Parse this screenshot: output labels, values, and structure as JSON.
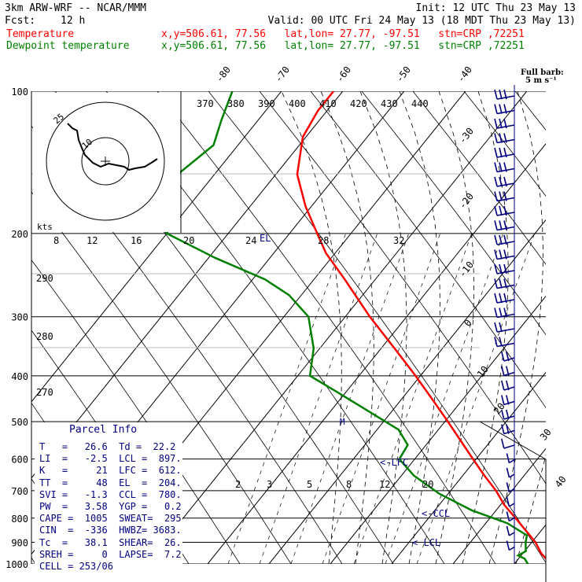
{
  "header": {
    "model": "3km ARW-WRF -- NCAR/MMM",
    "init": "Init: 12 UTC Thu 23 May 13",
    "fcst_label": "Fcst:",
    "fcst_value": "12 h",
    "valid": "Valid: 00 UTC Fri 24 May 13 (18 MDT Thu 23 May 13)"
  },
  "legend": [
    {
      "name": "Temperature",
      "info": "x,y=506.61, 77.56   lat,lon= 27.77, -97.51   stn=CRP ,72251",
      "color": "#ff0000"
    },
    {
      "name": "Dewpoint temperature",
      "info": "x,y=506.61, 77.56   lat,lon= 27.77, -97.51   stn=CRP ,72251",
      "color": "#008000"
    }
  ],
  "chart_data": {
    "type": "skew-t log-p sounding",
    "pressure_levels": [
      "100",
      "200",
      "300",
      "400",
      "500",
      "600",
      "700",
      "800",
      "900",
      "1000"
    ],
    "isotherm_labels": [
      "-80",
      "-70",
      "-60",
      "-50",
      "-40",
      "-30",
      "-20",
      "-10",
      "0",
      "10",
      "20",
      "30",
      "40"
    ],
    "dry_adiabat_labels": [
      "370",
      "380",
      "390",
      "400",
      "410",
      "420",
      "430",
      "440"
    ],
    "left_adiabat_labels": [
      "290",
      "280",
      "270"
    ],
    "mixing_ratio_labels_upper": [
      "8",
      "12",
      "16",
      "20",
      "24",
      "28",
      "32"
    ],
    "mixing_ratio_labels_lower": [
      "2",
      "3",
      "5",
      "8",
      "12",
      "20"
    ],
    "temperature": {
      "name": "Temperature",
      "color": "#ff0000",
      "points": [
        [
          1000,
          26.6
        ],
        [
          975,
          24.5
        ],
        [
          950,
          23.0
        ],
        [
          900,
          20.6
        ],
        [
          850,
          17.5
        ],
        [
          800,
          14.2
        ],
        [
          750,
          10.6
        ],
        [
          700,
          7.4
        ],
        [
          650,
          3.5
        ],
        [
          600,
          -0.5
        ],
        [
          550,
          -4.8
        ],
        [
          500,
          -9.5
        ],
        [
          450,
          -14.8
        ],
        [
          400,
          -20.8
        ],
        [
          350,
          -27.8
        ],
        [
          300,
          -36.0
        ],
        [
          250,
          -45.0
        ],
        [
          220,
          -51.5
        ],
        [
          200,
          -55.5
        ],
        [
          175,
          -61.0
        ],
        [
          150,
          -66.5
        ],
        [
          125,
          -70.5
        ],
        [
          110,
          -71.5
        ],
        [
          100,
          -71.5
        ]
      ]
    },
    "dewpoint": {
      "name": "Dewpoint temperature",
      "color": "#008000",
      "points": [
        [
          1000,
          22.2
        ],
        [
          975,
          21.0
        ],
        [
          960,
          19.5
        ],
        [
          940,
          20.2
        ],
        [
          900,
          19.0
        ],
        [
          870,
          18.3
        ],
        [
          820,
          13.5
        ],
        [
          770,
          6.0
        ],
        [
          710,
          -1.5
        ],
        [
          650,
          -8.0
        ],
        [
          600,
          -12.5
        ],
        [
          560,
          -13.0
        ],
        [
          520,
          -16.5
        ],
        [
          480,
          -23.0
        ],
        [
          430,
          -32.0
        ],
        [
          400,
          -38.0
        ],
        [
          350,
          -41.0
        ],
        [
          300,
          -46.0
        ],
        [
          270,
          -52.0
        ],
        [
          250,
          -58.0
        ],
        [
          225,
          -69.0
        ],
        [
          200,
          -80.0
        ],
        [
          180,
          -85.0
        ],
        [
          165,
          -86.0
        ],
        [
          150,
          -86.0
        ],
        [
          130,
          -84.0
        ],
        [
          115,
          -86.0
        ],
        [
          100,
          -88.0
        ]
      ]
    },
    "level_markers": [
      {
        "label": "EL",
        "p": 204
      },
      {
        "label": "<-LFC",
        "p": 612
      },
      {
        "label": "<-CCL",
        "p": 780
      },
      {
        "label": "< LCL",
        "p": 897
      }
    ],
    "hodograph": {
      "ring_labels": [
        "25",
        "10"
      ],
      "speed_unit": "kts"
    },
    "wind_barbs_note": "Full barb = 5 m s⁻¹"
  },
  "parcel_info": {
    "title": "Parcel Info",
    "rows": [
      "T   =   26.6  Td =  22.2",
      "LI  =   -2.5  LCL =  897.",
      "K   =     21  LFC =  612.",
      "TT  =     48  EL  =  204.",
      "SVI =   -1.3  CCL =  780.",
      "PW  =   3.58  YGP =   0.2",
      "CAPE =  1005  SWEAT=  295",
      "CIN  =  -336  HWBZ= 3683.",
      "Tc  =   38.1  SHEAR=  26.",
      "SREH =     0  LAPSE=  7.2",
      "CELL = 253/06"
    ]
  },
  "barb_title": "Full barb:",
  "barb_unit": "5 m s⁻¹"
}
